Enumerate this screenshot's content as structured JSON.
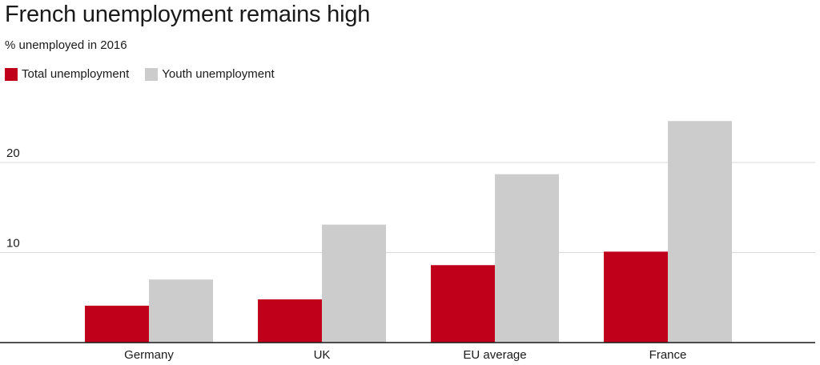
{
  "title": "French unemployment remains high",
  "subtitle": "% unemployed in 2016",
  "colors": {
    "total": "#c0001a",
    "youth": "#cccccc",
    "grid": "#d9d9d9",
    "axis": "#1a1a1a"
  },
  "chart_data": {
    "type": "bar",
    "title": "French unemployment remains high",
    "subtitle": "% unemployed in 2016",
    "xlabel": "",
    "ylabel": "",
    "categories": [
      "Germany",
      "UK",
      "EU average",
      "France"
    ],
    "series": [
      {
        "name": "Total unemployment",
        "values": [
          4.1,
          4.8,
          8.6,
          10.1
        ]
      },
      {
        "name": "Youth unemployment",
        "values": [
          7.0,
          13.1,
          18.7,
          24.6
        ]
      }
    ],
    "ylim": [
      0,
      25
    ],
    "yticks": [
      10,
      20
    ],
    "yticklabels": [
      "10",
      "20"
    ],
    "grid": true,
    "legend": "top-left"
  }
}
